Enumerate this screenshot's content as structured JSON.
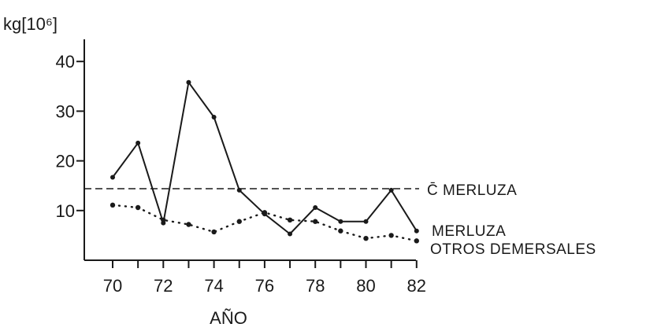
{
  "chart_data": {
    "type": "line",
    "xlabel": "AÑO",
    "ylabel": "kg[10⁶]",
    "x_ticks": [
      "70",
      "72",
      "74",
      "76",
      "78",
      "80",
      "82"
    ],
    "y_ticks": [
      "10",
      "20",
      "30",
      "40"
    ],
    "xlim": [
      69,
      82
    ],
    "ylim": [
      0,
      44
    ],
    "grid": false,
    "x": [
      70,
      71,
      72,
      73,
      74,
      75,
      76,
      77,
      78,
      79,
      80,
      81,
      82
    ],
    "series": [
      {
        "name": "MERLUZA",
        "style": "solid",
        "color": "#1a1a1a",
        "values": [
          16.7,
          23.6,
          7.5,
          35.8,
          28.8,
          14.1,
          9.3,
          5.3,
          10.6,
          7.8,
          7.8,
          14.1,
          5.9
        ]
      },
      {
        "name": "OTROS DEMERSALES",
        "style": "dotted",
        "color": "#1a1a1a",
        "values": [
          11.1,
          10.6,
          8.1,
          7.2,
          5.7,
          7.8,
          9.6,
          8.1,
          7.8,
          5.9,
          4.4,
          5.0,
          3.9
        ]
      }
    ],
    "reference_line": {
      "label": "C̄ MERLUZA",
      "value": 14.4,
      "style": "dashed"
    }
  }
}
